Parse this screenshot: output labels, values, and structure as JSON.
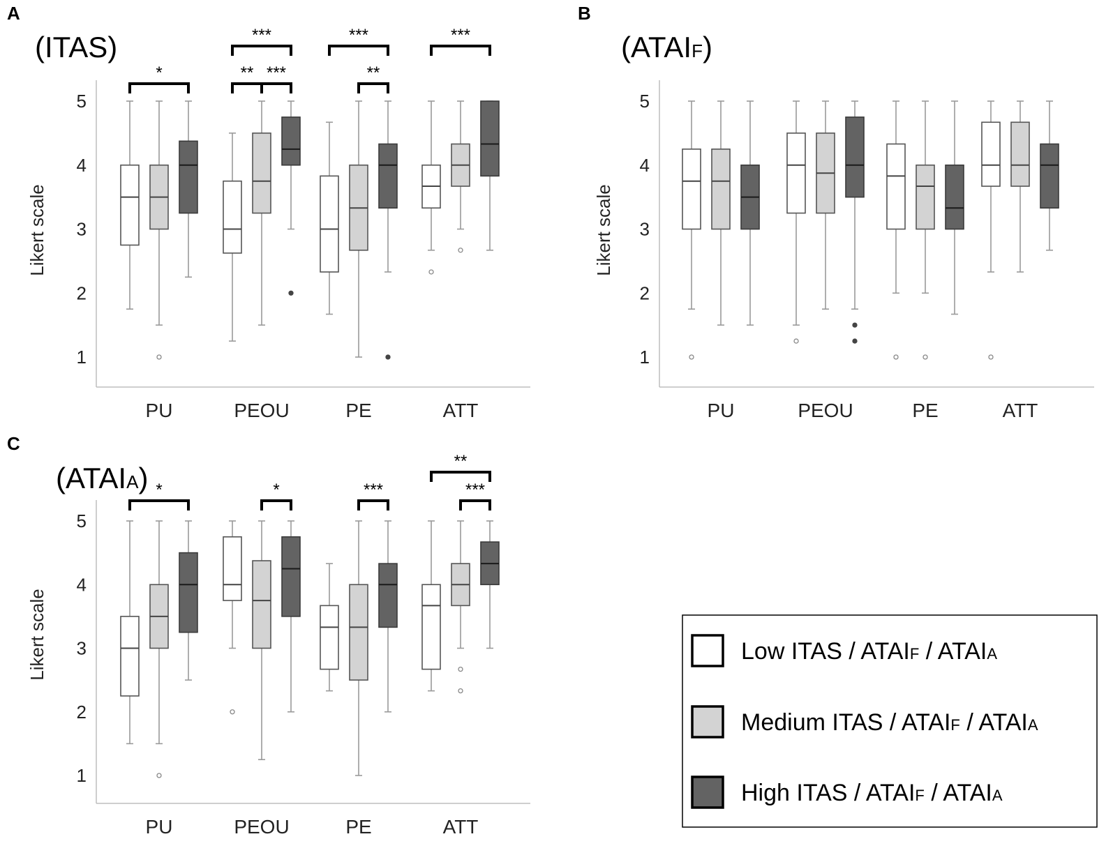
{
  "colors": {
    "low": "#ffffff",
    "medium": "#d3d3d3",
    "high": "#636363"
  },
  "legend": {
    "items": [
      {
        "group": "low",
        "label": "Low ITAS",
        "sep1": " / ATAI",
        "sub1": "F",
        "sep2": " / ATAI",
        "sub2": "A"
      },
      {
        "group": "medium",
        "label": "Medium ITAS",
        "sep1": " / ATAI",
        "sub1": "F",
        "sep2": " / ATAI",
        "sub2": "A"
      },
      {
        "group": "high",
        "label": "High ITAS",
        "sep1": " / ATAI",
        "sub1": "F",
        "sep2": " / ATAI",
        "sub2": "A"
      }
    ]
  },
  "chart_data": [
    {
      "panel": "A",
      "type": "box",
      "title": "(ITAS)",
      "title_sub": "",
      "ylabel": "Likert scale",
      "ylim": [
        0.5,
        5.5
      ],
      "yticks": [
        1,
        2,
        3,
        4,
        5
      ],
      "categories": [
        "PU",
        "PEOU",
        "PE",
        "ATT"
      ],
      "groups": [
        "low",
        "medium",
        "high"
      ],
      "boxes": [
        [
          {
            "min": 1.75,
            "q1": 2.75,
            "med": 3.5,
            "q3": 4.0,
            "max": 5.0,
            "out": []
          },
          {
            "min": 1.5,
            "q1": 3.0,
            "med": 3.5,
            "q3": 4.0,
            "max": 5.0,
            "out": [
              1.0
            ]
          },
          {
            "min": 2.25,
            "q1": 3.25,
            "med": 4.0,
            "q3": 4.375,
            "max": 5.0,
            "out": []
          }
        ],
        [
          {
            "min": 1.25,
            "q1": 2.625,
            "med": 3.0,
            "q3": 3.75,
            "max": 4.5,
            "out": []
          },
          {
            "min": 1.5,
            "q1": 3.25,
            "med": 3.75,
            "q3": 4.5,
            "max": 5.0,
            "out": []
          },
          {
            "min": 3.0,
            "q1": 4.0,
            "med": 4.25,
            "q3": 4.75,
            "max": 5.0,
            "out": [
              2.0
            ]
          }
        ],
        [
          {
            "min": 1.67,
            "q1": 2.33,
            "med": 3.0,
            "q3": 3.83,
            "max": 4.67,
            "out": []
          },
          {
            "min": 1.0,
            "q1": 2.67,
            "med": 3.33,
            "q3": 4.0,
            "max": 5.0,
            "out": []
          },
          {
            "min": 2.33,
            "q1": 3.33,
            "med": 4.0,
            "q3": 4.33,
            "max": 5.0,
            "out": [
              1.0
            ]
          }
        ],
        [
          {
            "min": 2.67,
            "q1": 3.33,
            "med": 3.67,
            "q3": 4.0,
            "max": 5.0,
            "out": [
              2.33
            ]
          },
          {
            "min": 3.0,
            "q1": 3.67,
            "med": 4.0,
            "q3": 4.33,
            "max": 5.0,
            "out": [
              2.67
            ]
          },
          {
            "min": 2.67,
            "q1": 3.83,
            "med": 4.33,
            "q3": 5.0,
            "max": 5.0,
            "out": []
          }
        ]
      ],
      "brackets": [
        {
          "cat": 0,
          "from": 0,
          "to": 2,
          "level": 0,
          "label": "*"
        },
        {
          "cat": 1,
          "from": 0,
          "to": 1,
          "level": 0,
          "label": "**"
        },
        {
          "cat": 1,
          "from": 1,
          "to": 2,
          "level": 0,
          "label": "***"
        },
        {
          "cat": 1,
          "from": 0,
          "to": 2,
          "level": 1,
          "label": "***"
        },
        {
          "cat": 2,
          "from": 1,
          "to": 2,
          "level": 0,
          "label": "**"
        },
        {
          "cat": 2,
          "from": 0,
          "to": 2,
          "level": 1,
          "label": "***"
        },
        {
          "cat": 3,
          "from": 0,
          "to": 2,
          "level": 1,
          "label": "***"
        }
      ]
    },
    {
      "panel": "B",
      "type": "box",
      "title": "(ATAI",
      "title_sub": "F",
      "ylabel": "Likert scale",
      "ylim": [
        0.5,
        5.5
      ],
      "yticks": [
        1,
        2,
        3,
        4,
        5
      ],
      "categories": [
        "PU",
        "PEOU",
        "PE",
        "ATT"
      ],
      "groups": [
        "low",
        "medium",
        "high"
      ],
      "boxes": [
        [
          {
            "min": 1.75,
            "q1": 3.0,
            "med": 3.75,
            "q3": 4.25,
            "max": 5.0,
            "out": [
              1.0
            ]
          },
          {
            "min": 1.5,
            "q1": 3.0,
            "med": 3.75,
            "q3": 4.25,
            "max": 5.0,
            "out": []
          },
          {
            "min": 1.5,
            "q1": 3.0,
            "med": 3.5,
            "q3": 4.0,
            "max": 5.0,
            "out": []
          }
        ],
        [
          {
            "min": 1.5,
            "q1": 3.25,
            "med": 4.0,
            "q3": 4.5,
            "max": 5.0,
            "out": [
              1.25
            ]
          },
          {
            "min": 1.75,
            "q1": 3.25,
            "med": 3.875,
            "q3": 4.5,
            "max": 5.0,
            "out": []
          },
          {
            "min": 1.75,
            "q1": 3.5,
            "med": 4.0,
            "q3": 4.75,
            "max": 5.0,
            "out": [
              1.5,
              1.25
            ]
          }
        ],
        [
          {
            "min": 2.0,
            "q1": 3.0,
            "med": 3.83,
            "q3": 4.33,
            "max": 5.0,
            "out": [
              1.0
            ]
          },
          {
            "min": 2.0,
            "q1": 3.0,
            "med": 3.67,
            "q3": 4.0,
            "max": 5.0,
            "out": [
              1.0
            ]
          },
          {
            "min": 1.67,
            "q1": 3.0,
            "med": 3.33,
            "q3": 4.0,
            "max": 5.0,
            "out": []
          }
        ],
        [
          {
            "min": 2.33,
            "q1": 3.67,
            "med": 4.0,
            "q3": 4.67,
            "max": 5.0,
            "out": [
              1.0
            ]
          },
          {
            "min": 2.33,
            "q1": 3.67,
            "med": 4.0,
            "q3": 4.67,
            "max": 5.0,
            "out": []
          },
          {
            "min": 2.67,
            "q1": 3.33,
            "med": 4.0,
            "q3": 4.33,
            "max": 5.0,
            "out": []
          }
        ]
      ],
      "brackets": []
    },
    {
      "panel": "C",
      "type": "box",
      "title": "(ATAI",
      "title_sub": "A",
      "ylabel": "Likert scale",
      "ylim": [
        0.5,
        5.5
      ],
      "yticks": [
        1,
        2,
        3,
        4,
        5
      ],
      "categories": [
        "PU",
        "PEOU",
        "PE",
        "ATT"
      ],
      "groups": [
        "low",
        "medium",
        "high"
      ],
      "boxes": [
        [
          {
            "min": 1.5,
            "q1": 2.25,
            "med": 3.0,
            "q3": 3.5,
            "max": 5.0,
            "out": []
          },
          {
            "min": 1.5,
            "q1": 3.0,
            "med": 3.5,
            "q3": 4.0,
            "max": 5.0,
            "out": [
              1.0
            ]
          },
          {
            "min": 2.5,
            "q1": 3.25,
            "med": 4.0,
            "q3": 4.5,
            "max": 5.0,
            "out": []
          }
        ],
        [
          {
            "min": 3.0,
            "q1": 3.75,
            "med": 4.0,
            "q3": 4.75,
            "max": 5.0,
            "out": [
              2.0
            ]
          },
          {
            "min": 1.25,
            "q1": 3.0,
            "med": 3.75,
            "q3": 4.375,
            "max": 5.0,
            "out": []
          },
          {
            "min": 2.0,
            "q1": 3.5,
            "med": 4.25,
            "q3": 4.75,
            "max": 5.0,
            "out": []
          }
        ],
        [
          {
            "min": 2.33,
            "q1": 2.67,
            "med": 3.33,
            "q3": 3.67,
            "max": 4.33,
            "out": []
          },
          {
            "min": 1.0,
            "q1": 2.5,
            "med": 3.33,
            "q3": 4.0,
            "max": 5.0,
            "out": []
          },
          {
            "min": 2.0,
            "q1": 3.33,
            "med": 4.0,
            "q3": 4.33,
            "max": 5.0,
            "out": []
          }
        ],
        [
          {
            "min": 2.33,
            "q1": 2.67,
            "med": 3.67,
            "q3": 4.0,
            "max": 5.0,
            "out": []
          },
          {
            "min": 3.0,
            "q1": 3.67,
            "med": 4.0,
            "q3": 4.33,
            "max": 5.0,
            "out": [
              2.67,
              2.33
            ]
          },
          {
            "min": 3.0,
            "q1": 4.0,
            "med": 4.33,
            "q3": 4.67,
            "max": 5.0,
            "out": []
          }
        ]
      ],
      "brackets": [
        {
          "cat": 0,
          "from": 0,
          "to": 2,
          "level": 0,
          "label": "*"
        },
        {
          "cat": 1,
          "from": 1,
          "to": 2,
          "level": 0,
          "label": "*"
        },
        {
          "cat": 2,
          "from": 1,
          "to": 2,
          "level": 0,
          "label": "***"
        },
        {
          "cat": 3,
          "from": 1,
          "to": 2,
          "level": 0,
          "label": "***"
        },
        {
          "cat": 3,
          "from": 0,
          "to": 2,
          "level": 1,
          "label": "**"
        }
      ]
    }
  ]
}
